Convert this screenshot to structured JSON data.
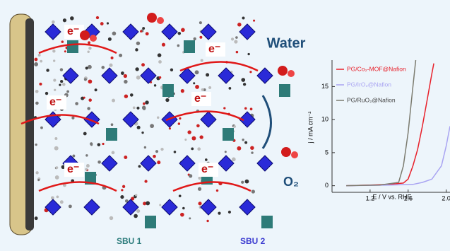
{
  "labels": {
    "electrons": [
      "e⁻",
      "e⁻",
      "e⁻",
      "e⁻",
      "e⁻",
      "e⁻"
    ],
    "water": "Water",
    "oxygen": "O₂",
    "sbu1": "SBU 1",
    "sbu2": "SBU 2"
  },
  "chart_data": {
    "type": "line",
    "xlabel": "E / V vs. RHE",
    "ylabel": "j / mA cm⁻²",
    "xlim": [
      0.8,
      2.04
    ],
    "ylim": [
      -1,
      19
    ],
    "xticks": [
      1.2,
      1.6,
      {
        "value": 2.0,
        "label": "2.0"
      }
    ],
    "yticks": [
      0,
      5,
      10,
      15
    ],
    "legend": "upper left",
    "series": [
      {
        "name": "PG/Co₂-MOF@Nafion",
        "color": "#e8202a",
        "x": [
          0.95,
          1.2,
          1.4,
          1.55,
          1.6,
          1.65,
          1.7,
          1.75,
          1.8,
          1.85,
          1.87
        ],
        "values": [
          0,
          0.1,
          0.2,
          0.4,
          1,
          3,
          5.5,
          9,
          13,
          17,
          18.5
        ]
      },
      {
        "name": "PG/IrO₂@Nafion",
        "color": "#a9a4f2",
        "x": [
          0.95,
          1.4,
          1.65,
          1.75,
          1.85,
          1.95,
          2.0,
          2.04
        ],
        "values": [
          0,
          0.1,
          0.2,
          0.5,
          1,
          3,
          6,
          9
        ]
      },
      {
        "name": "PG/RuO₂@Nafion",
        "color": "#7c7c70",
        "x": [
          0.95,
          1.3,
          1.5,
          1.55,
          1.6,
          1.65,
          1.68
        ],
        "values": [
          0,
          0.1,
          0.5,
          3,
          8,
          15,
          19
        ]
      }
    ]
  }
}
